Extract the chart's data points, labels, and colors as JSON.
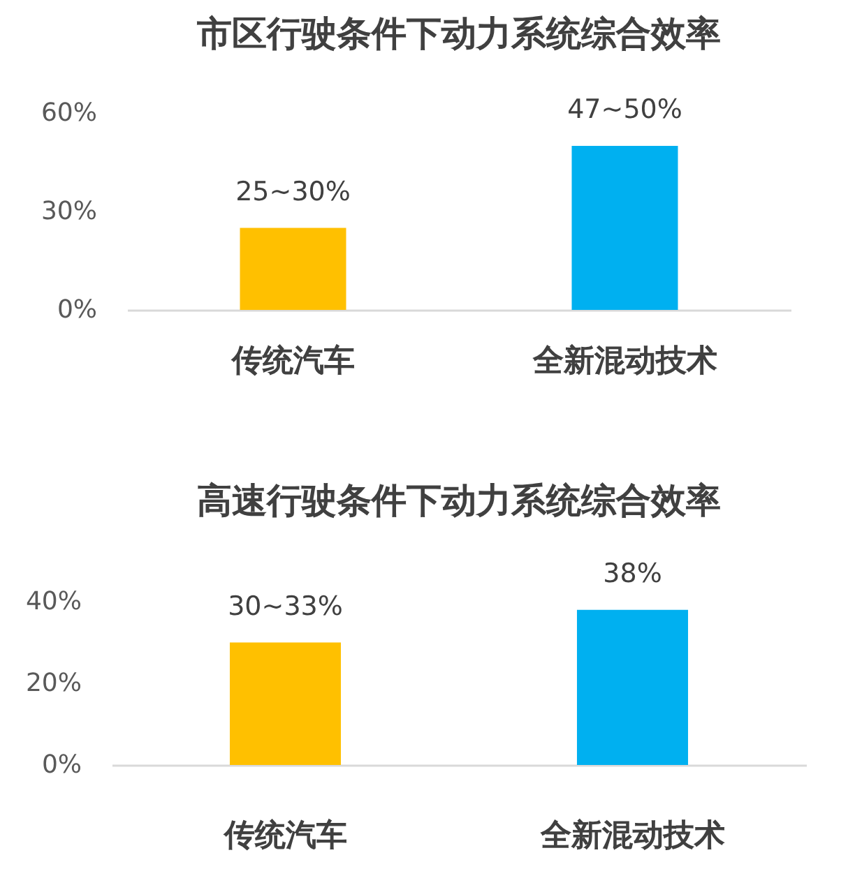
{
  "chart_data": [
    {
      "type": "bar",
      "title": "市区行驶条件下动力系统综合效率",
      "categories": [
        "传统汽车",
        "全新混动技术"
      ],
      "values": [
        25,
        50
      ],
      "colors": [
        "#ffc000",
        "#00b0f0"
      ],
      "value_labels": [
        "25~30%",
        "47~50%"
      ],
      "ylim": [
        0,
        60
      ],
      "yticks": [
        {
          "value": 0,
          "label": "0%"
        },
        {
          "value": 30,
          "label": "30%"
        },
        {
          "value": 60,
          "label": "60%"
        }
      ],
      "grid": false
    },
    {
      "type": "bar",
      "title": "高速行驶条件下动力系统综合效率",
      "categories": [
        "传统汽车",
        "全新混动技术"
      ],
      "values": [
        30,
        38
      ],
      "colors": [
        "#ffc000",
        "#00b0f0"
      ],
      "value_labels": [
        "30~33%",
        "38%"
      ],
      "ylim": [
        0,
        40
      ],
      "yticks": [
        {
          "value": 0,
          "label": "0%"
        },
        {
          "value": 20,
          "label": "20%"
        },
        {
          "value": 40,
          "label": "40%"
        }
      ],
      "grid": false
    }
  ]
}
